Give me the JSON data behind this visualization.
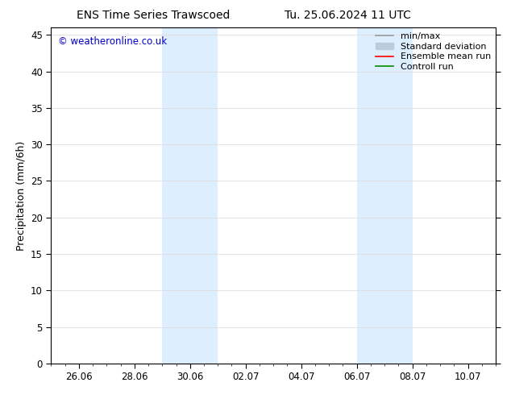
{
  "title_left": "ENS Time Series Trawscoed",
  "title_right": "Tu. 25.06.2024 11 UTC",
  "ylabel": "Precipitation (mm/6h)",
  "watermark": "© weatheronline.co.uk",
  "watermark_color": "#0000cc",
  "ylim": [
    0,
    46
  ],
  "yticks": [
    0,
    5,
    10,
    15,
    20,
    25,
    30,
    35,
    40,
    45
  ],
  "xlim": [
    0,
    16
  ],
  "xtick_labels": [
    "26.06",
    "28.06",
    "30.06",
    "02.07",
    "04.07",
    "06.07",
    "08.07",
    "10.07"
  ],
  "xtick_positions": [
    1,
    3,
    5,
    7,
    9,
    11,
    13,
    15
  ],
  "shade_bands": [
    {
      "x_start": 4.0,
      "x_end": 6.0,
      "color": "#ddeeff",
      "alpha": 1.0
    },
    {
      "x_start": 11.0,
      "x_end": 13.0,
      "color": "#ddeeff",
      "alpha": 1.0
    }
  ],
  "legend_entries": [
    {
      "label": "min/max",
      "color": "#999999",
      "linewidth": 1.2,
      "linestyle": "-",
      "type": "line"
    },
    {
      "label": "Standard deviation",
      "color": "#bbccdd",
      "linewidth": 8,
      "linestyle": "-",
      "type": "patch"
    },
    {
      "label": "Ensemble mean run",
      "color": "#ff0000",
      "linewidth": 1.2,
      "linestyle": "-",
      "type": "line"
    },
    {
      "label": "Controll run",
      "color": "#008800",
      "linewidth": 1.2,
      "linestyle": "-",
      "type": "line"
    }
  ],
  "background_color": "#ffffff",
  "plot_bg_color": "#ffffff",
  "grid_color": "#dddddd",
  "title_fontsize": 10,
  "ylabel_fontsize": 9,
  "tick_fontsize": 8.5,
  "legend_fontsize": 8,
  "watermark_fontsize": 8.5
}
